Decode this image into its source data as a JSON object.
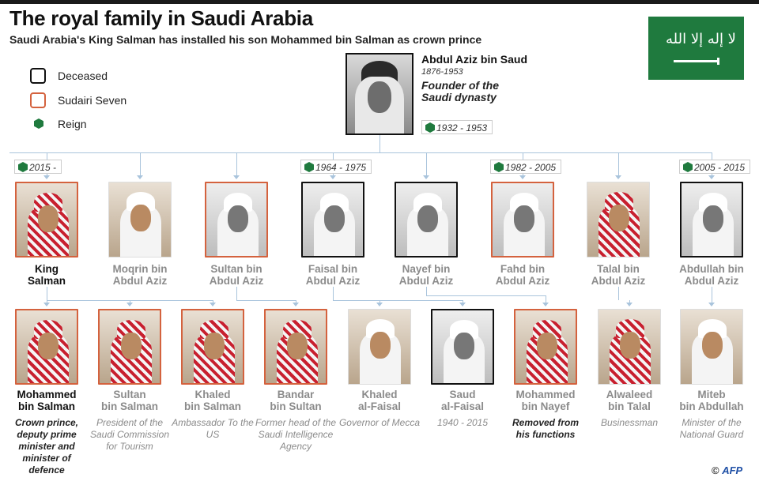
{
  "title": "The royal family in Saudi Arabia",
  "subtitle": "Saudi Arabia's King Salman has installed his son Mohammed bin Salman as crown prince",
  "legend": {
    "deceased": "Deceased",
    "sudairi": "Sudairi Seven",
    "reign": "Reign"
  },
  "colors": {
    "sudairi": "#d4623e",
    "deceased": "#111111",
    "reign": "#1f7a3e",
    "connector": "#a9c4dc"
  },
  "flag": {
    "icon": "saudi-flag-icon",
    "shahada": "لا إله إلا الله"
  },
  "founder": {
    "name": "Abdul Aziz bin Saud",
    "years": "1876-1953",
    "description": "Founder of the Saudi dynasty",
    "reign": "1932 - 1953"
  },
  "sons": [
    {
      "line1": "King",
      "line2": "Salman",
      "reign": "2015 -",
      "status": "sudairi",
      "highlight": true
    },
    {
      "line1": "Moqrin bin",
      "line2": "Abdul Aziz",
      "reign": "",
      "status": "plain"
    },
    {
      "line1": "Sultan bin",
      "line2": "Abdul Aziz",
      "reign": "",
      "status": "sudairi-deceased"
    },
    {
      "line1": "Faisal bin",
      "line2": "Abdul Aziz",
      "reign": "1964 - 1975",
      "status": "deceased"
    },
    {
      "line1": "Nayef bin",
      "line2": "Abdul Aziz",
      "reign": "",
      "status": "deceased"
    },
    {
      "line1": "Fahd bin",
      "line2": "Abdul Aziz",
      "reign": "1982 - 2005",
      "status": "sudairi-deceased"
    },
    {
      "line1": "Talal bin",
      "line2": "Abdul Aziz",
      "reign": "",
      "status": "plain"
    },
    {
      "line1": "Abdullah bin",
      "line2": "Abdul Aziz",
      "reign": "2005 - 2015",
      "status": "deceased"
    }
  ],
  "grandsons": [
    {
      "line1": "Mohammed",
      "line2": "bin Salman",
      "desc": "Crown prince, deputy prime minister and minister of defence",
      "status": "sudairi",
      "highlight": true
    },
    {
      "line1": "Sultan",
      "line2": "bin Salman",
      "desc": "President of the Saudi Commission for Tourism",
      "status": "sudairi"
    },
    {
      "line1": "Khaled",
      "line2": "bin Salman",
      "desc": "Ambassador To the US",
      "status": "sudairi"
    },
    {
      "line1": "Bandar",
      "line2": "bin Sultan",
      "desc": "Former head of the Saudi Intelligence Agency",
      "status": "sudairi"
    },
    {
      "line1": "Khaled",
      "line2": "al-Faisal",
      "desc": "Governor of Mecca",
      "status": "plain"
    },
    {
      "line1": "Saud",
      "line2": "al-Faisal",
      "desc": "1940 - 2015",
      "status": "deceased"
    },
    {
      "line1": "Mohammed",
      "line2": "bin Nayef",
      "desc": "Removed from his functions",
      "status": "sudairi",
      "descStrong": true
    },
    {
      "line1": "Alwaleed",
      "line2": "bin Talal",
      "desc": "Businessman",
      "status": "plain"
    },
    {
      "line1": "Miteb",
      "line2": "bin Abdullah",
      "desc": "Minister of the National Guard",
      "status": "plain"
    }
  ],
  "credit": {
    "copyright": "©",
    "agency": "AFP"
  }
}
